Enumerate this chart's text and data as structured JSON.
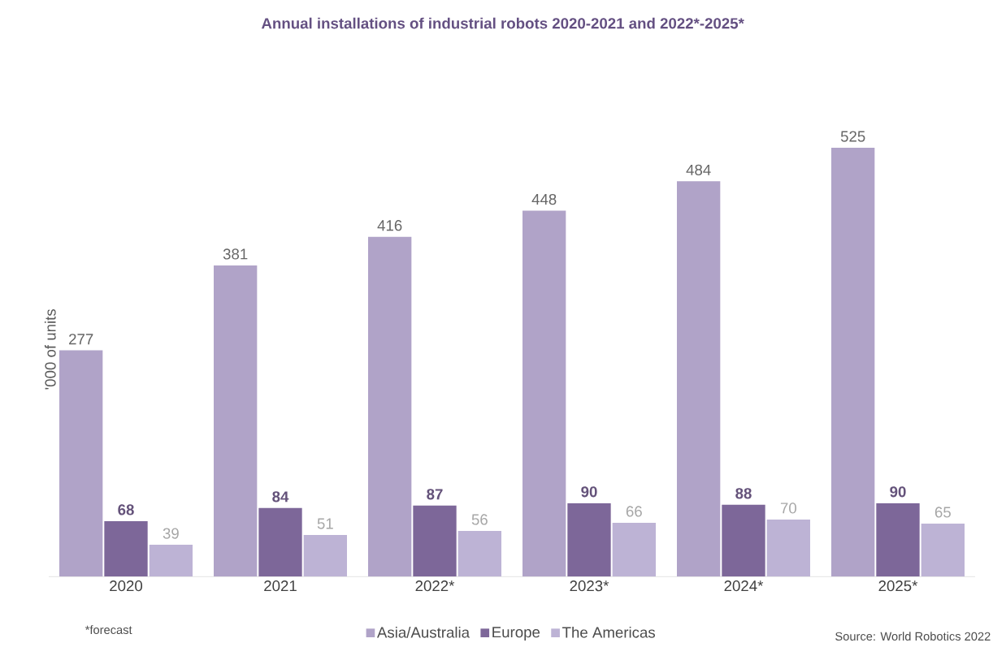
{
  "chart_data": {
    "type": "bar",
    "title": "Annual installations of industrial robots 2020-2021 and 2022*-2025*",
    "ylabel": "'000 of units",
    "categories": [
      "2020",
      "2021",
      "2022*",
      "2023*",
      "2024*",
      "2025*"
    ],
    "series": [
      {
        "name": "Asia/Australia",
        "color": "#b0a3c8",
        "values": [
          277,
          381,
          416,
          448,
          484,
          525
        ]
      },
      {
        "name": "Europe",
        "color": "#7d6799",
        "values": [
          68,
          84,
          87,
          90,
          88,
          90
        ]
      },
      {
        "name": "The Americas",
        "color": "#bdb3d5",
        "values": [
          39,
          51,
          56,
          66,
          70,
          65
        ]
      }
    ],
    "data_labels": true,
    "legend": "bottom",
    "annotations": [
      "*forecast",
      "Source: World Robotics 2022"
    ]
  }
}
